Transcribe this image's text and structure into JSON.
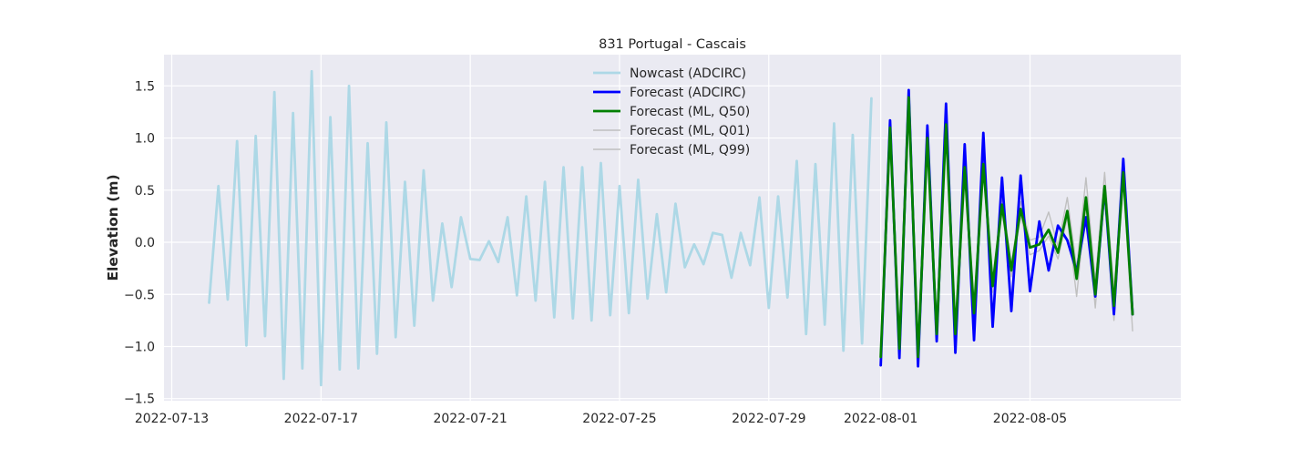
{
  "chart_data": {
    "type": "line",
    "title": "831 Portugal - Cascais",
    "xlabel": "",
    "ylabel": "Elevation (m)",
    "x_unit": "date",
    "xlim": [
      "2022-07-12T19:00",
      "2022-08-09T01:00"
    ],
    "ylim": [
      -1.52,
      1.8
    ],
    "xticks": [
      "2022-07-13",
      "2022-07-17",
      "2022-07-21",
      "2022-07-25",
      "2022-07-29",
      "2022-08-01",
      "2022-08-05"
    ],
    "yticks": [
      -1.5,
      -1.0,
      -0.5,
      0.0,
      0.5,
      1.0,
      1.5
    ],
    "ytick_labels": [
      "−1.5",
      "−1.0",
      "−0.5",
      "0.0",
      "0.5",
      "1.0",
      "1.5"
    ],
    "grid": true,
    "legend_position": "top-center",
    "background": "#eaeaf2",
    "series": [
      {
        "name": "Nowcast (ADCIRC)",
        "color": "#add8e6",
        "width": 2.8,
        "points": [
          [
            "2022-07-14T00:00",
            -0.58
          ],
          [
            "2022-07-14T06:00",
            0.54
          ],
          [
            "2022-07-14T12:00",
            -0.55
          ],
          [
            "2022-07-14T18:00",
            0.97
          ],
          [
            "2022-07-15T00:00",
            -0.99
          ],
          [
            "2022-07-15T06:00",
            1.02
          ],
          [
            "2022-07-15T12:00",
            -0.9
          ],
          [
            "2022-07-15T18:00",
            1.44
          ],
          [
            "2022-07-16T00:00",
            -1.31
          ],
          [
            "2022-07-16T06:00",
            1.24
          ],
          [
            "2022-07-16T12:00",
            -1.21
          ],
          [
            "2022-07-16T18:00",
            1.64
          ],
          [
            "2022-07-17T00:00",
            -1.37
          ],
          [
            "2022-07-17T06:00",
            1.2
          ],
          [
            "2022-07-17T12:00",
            -1.22
          ],
          [
            "2022-07-17T18:00",
            1.5
          ],
          [
            "2022-07-18T00:00",
            -1.21
          ],
          [
            "2022-07-18T06:00",
            0.95
          ],
          [
            "2022-07-18T12:00",
            -1.07
          ],
          [
            "2022-07-18T18:00",
            1.15
          ],
          [
            "2022-07-19T00:00",
            -0.91
          ],
          [
            "2022-07-19T06:00",
            0.58
          ],
          [
            "2022-07-19T12:00",
            -0.8
          ],
          [
            "2022-07-19T18:00",
            0.69
          ],
          [
            "2022-07-20T00:00",
            -0.56
          ],
          [
            "2022-07-20T06:00",
            0.18
          ],
          [
            "2022-07-20T12:00",
            -0.43
          ],
          [
            "2022-07-20T18:00",
            0.24
          ],
          [
            "2022-07-21T00:00",
            -0.16
          ],
          [
            "2022-07-21T06:00",
            -0.17
          ],
          [
            "2022-07-21T12:00",
            0.01
          ],
          [
            "2022-07-21T18:00",
            -0.19
          ],
          [
            "2022-07-22T00:00",
            0.24
          ],
          [
            "2022-07-22T06:00",
            -0.51
          ],
          [
            "2022-07-22T12:00",
            0.44
          ],
          [
            "2022-07-22T18:00",
            -0.56
          ],
          [
            "2022-07-23T00:00",
            0.58
          ],
          [
            "2022-07-23T06:00",
            -0.72
          ],
          [
            "2022-07-23T12:00",
            0.72
          ],
          [
            "2022-07-23T18:00",
            -0.73
          ],
          [
            "2022-07-24T00:00",
            0.72
          ],
          [
            "2022-07-24T06:00",
            -0.75
          ],
          [
            "2022-07-24T12:00",
            0.76
          ],
          [
            "2022-07-24T18:00",
            -0.7
          ],
          [
            "2022-07-25T00:00",
            0.54
          ],
          [
            "2022-07-25T06:00",
            -0.68
          ],
          [
            "2022-07-25T12:00",
            0.6
          ],
          [
            "2022-07-25T18:00",
            -0.54
          ],
          [
            "2022-07-26T00:00",
            0.27
          ],
          [
            "2022-07-26T06:00",
            -0.48
          ],
          [
            "2022-07-26T12:00",
            0.37
          ],
          [
            "2022-07-26T18:00",
            -0.24
          ],
          [
            "2022-07-27T00:00",
            -0.02
          ],
          [
            "2022-07-27T06:00",
            -0.21
          ],
          [
            "2022-07-27T12:00",
            0.09
          ],
          [
            "2022-07-27T18:00",
            0.07
          ],
          [
            "2022-07-28T00:00",
            -0.34
          ],
          [
            "2022-07-28T06:00",
            0.09
          ],
          [
            "2022-07-28T12:00",
            -0.22
          ],
          [
            "2022-07-28T18:00",
            0.43
          ],
          [
            "2022-07-29T00:00",
            -0.63
          ],
          [
            "2022-07-29T06:00",
            0.44
          ],
          [
            "2022-07-29T12:00",
            -0.53
          ],
          [
            "2022-07-29T18:00",
            0.78
          ],
          [
            "2022-07-30T00:00",
            -0.88
          ],
          [
            "2022-07-30T06:00",
            0.75
          ],
          [
            "2022-07-30T12:00",
            -0.79
          ],
          [
            "2022-07-30T18:00",
            1.14
          ],
          [
            "2022-07-31T00:00",
            -1.04
          ],
          [
            "2022-07-31T06:00",
            1.03
          ],
          [
            "2022-07-31T12:00",
            -0.97
          ],
          [
            "2022-07-31T18:00",
            1.38
          ]
        ]
      },
      {
        "name": "Forecast (ADCIRC)",
        "color": "#0000ff",
        "width": 2.8,
        "points": [
          [
            "2022-08-01T00:00",
            -1.18
          ],
          [
            "2022-08-01T06:00",
            1.17
          ],
          [
            "2022-08-01T12:00",
            -1.11
          ],
          [
            "2022-08-01T18:00",
            1.46
          ],
          [
            "2022-08-02T00:00",
            -1.19
          ],
          [
            "2022-08-02T06:00",
            1.12
          ],
          [
            "2022-08-02T12:00",
            -0.95
          ],
          [
            "2022-08-02T18:00",
            1.33
          ],
          [
            "2022-08-03T00:00",
            -1.06
          ],
          [
            "2022-08-03T06:00",
            0.94
          ],
          [
            "2022-08-03T12:00",
            -0.94
          ],
          [
            "2022-08-03T18:00",
            1.05
          ],
          [
            "2022-08-04T00:00",
            -0.81
          ],
          [
            "2022-08-04T06:00",
            0.62
          ],
          [
            "2022-08-04T12:00",
            -0.66
          ],
          [
            "2022-08-04T18:00",
            0.64
          ],
          [
            "2022-08-05T00:00",
            -0.47
          ],
          [
            "2022-08-05T06:00",
            0.2
          ],
          [
            "2022-08-05T12:00",
            -0.27
          ],
          [
            "2022-08-05T18:00",
            0.16
          ],
          [
            "2022-08-06T00:00",
            0.02
          ],
          [
            "2022-08-06T06:00",
            -0.28
          ],
          [
            "2022-08-06T12:00",
            0.24
          ],
          [
            "2022-08-06T18:00",
            -0.52
          ],
          [
            "2022-08-07T00:00",
            0.52
          ],
          [
            "2022-08-07T06:00",
            -0.69
          ],
          [
            "2022-08-07T12:00",
            0.8
          ],
          [
            "2022-08-07T18:00",
            -0.69
          ]
        ]
      },
      {
        "name": "Forecast (ML, Q50)",
        "color": "#008000",
        "width": 2.8,
        "points": [
          [
            "2022-08-01T00:00",
            -1.1
          ],
          [
            "2022-08-01T06:00",
            1.1
          ],
          [
            "2022-08-01T12:00",
            -1.02
          ],
          [
            "2022-08-01T18:00",
            1.39
          ],
          [
            "2022-08-02T00:00",
            -1.1
          ],
          [
            "2022-08-02T06:00",
            1.0
          ],
          [
            "2022-08-02T12:00",
            -0.88
          ],
          [
            "2022-08-02T18:00",
            1.13
          ],
          [
            "2022-08-03T00:00",
            -0.88
          ],
          [
            "2022-08-03T06:00",
            0.72
          ],
          [
            "2022-08-03T12:00",
            -0.68
          ],
          [
            "2022-08-03T18:00",
            0.75
          ],
          [
            "2022-08-04T00:00",
            -0.42
          ],
          [
            "2022-08-04T06:00",
            0.36
          ],
          [
            "2022-08-04T12:00",
            -0.27
          ],
          [
            "2022-08-04T18:00",
            0.32
          ],
          [
            "2022-08-05T00:00",
            -0.05
          ],
          [
            "2022-08-05T06:00",
            -0.02
          ],
          [
            "2022-08-05T12:00",
            0.12
          ],
          [
            "2022-08-05T18:00",
            -0.1
          ],
          [
            "2022-08-06T00:00",
            0.3
          ],
          [
            "2022-08-06T06:00",
            -0.35
          ],
          [
            "2022-08-06T12:00",
            0.43
          ],
          [
            "2022-08-06T18:00",
            -0.5
          ],
          [
            "2022-08-07T00:00",
            0.54
          ],
          [
            "2022-08-07T06:00",
            -0.61
          ],
          [
            "2022-08-07T12:00",
            0.67
          ],
          [
            "2022-08-07T18:00",
            -0.69
          ]
        ]
      },
      {
        "name": "Forecast (ML, Q01)",
        "color": "#c0c0c0",
        "width": 1.4,
        "points": [
          [
            "2022-08-01T00:00",
            -1.14
          ],
          [
            "2022-08-01T06:00",
            1.05
          ],
          [
            "2022-08-01T12:00",
            -1.06
          ],
          [
            "2022-08-01T18:00",
            1.34
          ],
          [
            "2022-08-02T00:00",
            -1.15
          ],
          [
            "2022-08-02T06:00",
            0.96
          ],
          [
            "2022-08-02T12:00",
            -0.93
          ],
          [
            "2022-08-02T18:00",
            1.08
          ],
          [
            "2022-08-03T00:00",
            -0.93
          ],
          [
            "2022-08-03T06:00",
            0.67
          ],
          [
            "2022-08-03T12:00",
            -0.74
          ],
          [
            "2022-08-03T18:00",
            0.7
          ],
          [
            "2022-08-04T00:00",
            -0.48
          ],
          [
            "2022-08-04T06:00",
            0.3
          ],
          [
            "2022-08-04T12:00",
            -0.33
          ],
          [
            "2022-08-04T18:00",
            0.26
          ],
          [
            "2022-08-05T00:00",
            -0.12
          ],
          [
            "2022-08-05T06:00",
            -0.08
          ],
          [
            "2022-08-05T12:00",
            0.06
          ],
          [
            "2022-08-05T18:00",
            -0.16
          ],
          [
            "2022-08-06T00:00",
            0.24
          ],
          [
            "2022-08-06T06:00",
            -0.52
          ],
          [
            "2022-08-06T12:00",
            0.38
          ],
          [
            "2022-08-06T18:00",
            -0.63
          ],
          [
            "2022-08-07T00:00",
            0.48
          ],
          [
            "2022-08-07T06:00",
            -0.75
          ],
          [
            "2022-08-07T12:00",
            0.61
          ],
          [
            "2022-08-07T18:00",
            -0.85
          ]
        ]
      },
      {
        "name": "Forecast (ML, Q99)",
        "color": "#c0c0c0",
        "width": 1.4,
        "points": [
          [
            "2022-08-01T00:00",
            -1.05
          ],
          [
            "2022-08-01T06:00",
            1.14
          ],
          [
            "2022-08-01T12:00",
            -0.97
          ],
          [
            "2022-08-01T18:00",
            1.44
          ],
          [
            "2022-08-02T00:00",
            -1.05
          ],
          [
            "2022-08-02T06:00",
            1.05
          ],
          [
            "2022-08-02T12:00",
            -0.82
          ],
          [
            "2022-08-02T18:00",
            1.19
          ],
          [
            "2022-08-03T00:00",
            -0.82
          ],
          [
            "2022-08-03T06:00",
            0.78
          ],
          [
            "2022-08-03T12:00",
            -0.61
          ],
          [
            "2022-08-03T18:00",
            0.81
          ],
          [
            "2022-08-04T00:00",
            -0.36
          ],
          [
            "2022-08-04T06:00",
            0.43
          ],
          [
            "2022-08-04T12:00",
            -0.21
          ],
          [
            "2022-08-04T18:00",
            0.39
          ],
          [
            "2022-08-05T00:00",
            0.02
          ],
          [
            "2022-08-05T06:00",
            0.05
          ],
          [
            "2022-08-05T12:00",
            0.29
          ],
          [
            "2022-08-05T18:00",
            -0.04
          ],
          [
            "2022-08-06T00:00",
            0.43
          ],
          [
            "2022-08-06T06:00",
            -0.25
          ],
          [
            "2022-08-06T12:00",
            0.62
          ],
          [
            "2022-08-06T18:00",
            -0.37
          ],
          [
            "2022-08-07T00:00",
            0.67
          ],
          [
            "2022-08-07T06:00",
            -0.46
          ],
          [
            "2022-08-07T12:00",
            0.72
          ],
          [
            "2022-08-07T18:00",
            -0.55
          ]
        ]
      }
    ]
  }
}
